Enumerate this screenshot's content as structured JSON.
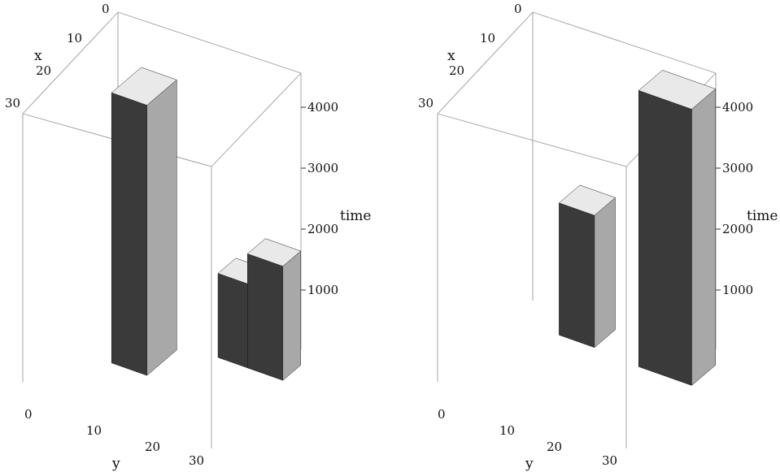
{
  "chart_data": [
    {
      "type": "3d-voxel",
      "axes": {
        "x": {
          "label": "x",
          "ticks": [
            "0",
            "10",
            "20",
            "30"
          ],
          "range": [
            0,
            32
          ]
        },
        "y": {
          "label": "y",
          "ticks": [
            "0",
            "10",
            "20",
            "30"
          ],
          "range": [
            0,
            32
          ]
        },
        "time": {
          "label": "time",
          "ticks": [
            "1000",
            "2000",
            "3000",
            "4000"
          ],
          "range": [
            0,
            4600
          ]
        }
      },
      "columns": [
        {
          "x": [
            8,
            18
          ],
          "y": [
            8,
            14
          ],
          "time": [
            0,
            4500
          ]
        },
        {
          "x": [
            0,
            6
          ],
          "y": [
            20,
            25
          ],
          "time": [
            0,
            1400
          ]
        },
        {
          "x": [
            0,
            6
          ],
          "y": [
            25,
            31
          ],
          "time": [
            0,
            1900
          ]
        }
      ]
    },
    {
      "type": "3d-voxel",
      "axes": {
        "x": {
          "label": "x",
          "ticks": [
            "0",
            "10",
            "20",
            "30"
          ],
          "range": [
            0,
            32
          ]
        },
        "y": {
          "label": "y",
          "ticks": [
            "0",
            "10",
            "20",
            "30"
          ],
          "range": [
            0,
            32
          ]
        },
        "time": {
          "label": "time",
          "ticks": [
            "1000",
            "2000",
            "3000",
            "4000"
          ],
          "range": [
            0,
            4600
          ]
        }
      },
      "columns": [
        {
          "x": [
            0,
            7
          ],
          "y": [
            8,
            14
          ],
          "time": [
            0,
            2200
          ]
        },
        {
          "x": [
            0,
            8
          ],
          "y": [
            22,
            31
          ],
          "time": [
            0,
            4600
          ]
        }
      ]
    }
  ]
}
